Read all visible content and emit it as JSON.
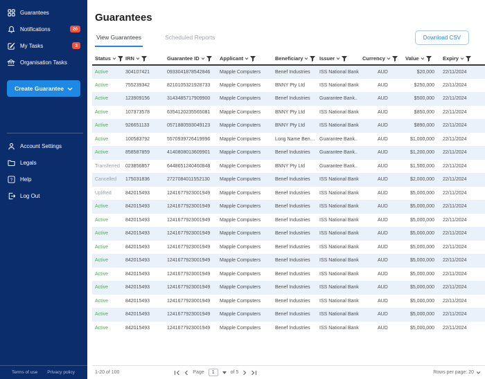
{
  "sidebar": {
    "items": [
      {
        "label": "Guarantees",
        "icon": "grid-icon",
        "badge": null
      },
      {
        "label": "Notifications",
        "icon": "bell-icon",
        "badge": "20"
      },
      {
        "label": "My Tasks",
        "icon": "tasks-icon",
        "badge": "3"
      },
      {
        "label": "Organisation Tasks",
        "icon": "bank-icon",
        "badge": null
      }
    ],
    "create_button_label": "Create Guarantee",
    "secondary_items": [
      {
        "label": "Account Settings",
        "icon": "person-icon"
      },
      {
        "label": "Legals",
        "icon": "folder-icon"
      },
      {
        "label": "Help",
        "icon": "help-icon"
      },
      {
        "label": "Log Out",
        "icon": "logout-icon"
      }
    ],
    "footer_links": {
      "terms": "Terms of use",
      "privacy": "Privacy policy"
    }
  },
  "header": {
    "title": "Guarantees",
    "tabs": [
      {
        "label": "View Guarantees",
        "active": true
      },
      {
        "label": "Scheduled Reports",
        "active": false
      }
    ],
    "download_button_label": "Download CSV"
  },
  "table": {
    "columns": [
      "Status",
      "IRN",
      "Guarantee ID",
      "Applicant",
      "Beneficiary",
      "Issuer",
      "Currency",
      "Value",
      "Expiry"
    ],
    "rows": [
      [
        "Active",
        "304107421",
        "0933041878542846",
        "Mapple Computers",
        "Benef Industries",
        "ISS National Bank",
        "AUD",
        "$20,000",
        "22/11/2024"
      ],
      [
        "Active",
        "755239342",
        "8210105321928733",
        "Mapple Computers",
        "BNNY Pty Ltd",
        "ISS National Bank",
        "AUD",
        "$250,000",
        "22/11/2024"
      ],
      [
        "Active",
        "123909156",
        "3143485717909900",
        "Mapple Computers",
        "Benef Industries",
        "Guarantee Bank..",
        "AUD",
        "$500,000",
        "22/11/2024"
      ],
      [
        "Active",
        "107373578",
        "6354120235565081",
        "Mapple Computers",
        "BNNY Pty Ltd",
        "ISS National Bank",
        "AUD",
        "$850,000",
        "22/11/2024"
      ],
      [
        "Active",
        "926651133",
        "0571880593049123",
        "Mapple Computers",
        "BNNY Pty Ltd",
        "ISS National Bank",
        "AUD",
        "$890,000",
        "22/11/2024"
      ],
      [
        "Active",
        "100583792",
        "5570939726419996",
        "Mapple Computers",
        "Long Name Benef...",
        "Guarantee Bank..",
        "AUD",
        "$1,000,000",
        "22/11/2024"
      ],
      [
        "Active",
        "858587859",
        "4140808013609901",
        "Mapple Computers",
        "Benef Industries",
        "Guarantee Bank..",
        "AUD",
        "$1,200,000",
        "22/11/2024"
      ],
      [
        "Transferred",
        "023856857",
        "6448651240460848",
        "Mapple Computers",
        "BNNY Pty Ltd",
        "Guarantee Bank..",
        "AUD",
        "$1,500,000",
        "22/11/2024"
      ],
      [
        "Cancelled",
        "175031836",
        "2727084011552130",
        "Mapple Computers",
        "Benef Industries",
        "ISS National Bank",
        "AUD",
        "$2,000,000",
        "22/11/2024"
      ],
      [
        "Uplifted",
        "842015493",
        "1241677923001949",
        "Mapple Computers",
        "Benef Industries",
        "ISS National Bank",
        "AUD",
        "$5,000,000",
        "22/11/2024"
      ],
      [
        "Active",
        "842015493",
        "1241677923001949",
        "Mapple Computers",
        "Benef Industries",
        "ISS National Bank",
        "AUD",
        "$5,000,000",
        "22/11/2024"
      ],
      [
        "Active",
        "842015493",
        "1241677923001949",
        "Mapple Computers",
        "Benef Industries",
        "ISS National Bank",
        "AUD",
        "$5,000,000",
        "22/11/2024"
      ],
      [
        "Active",
        "842015493",
        "1241677923001949",
        "Mapple Computers",
        "Benef Industries",
        "ISS National Bank",
        "AUD",
        "$5,000,000",
        "22/11/2024"
      ],
      [
        "Active",
        "842015493",
        "1241677923001949",
        "Mapple Computers",
        "Benef Industries",
        "ISS National Bank",
        "AUD",
        "$5,000,000",
        "22/11/2024"
      ],
      [
        "Active",
        "842015493",
        "1241677923001949",
        "Mapple Computers",
        "Benef Industries",
        "ISS National Bank",
        "AUD",
        "$5,000,000",
        "22/11/2024"
      ],
      [
        "Active",
        "842015493",
        "1241677923001949",
        "Mapple Computers",
        "Benef Industries",
        "ISS National Bank",
        "AUD",
        "$5,000,000",
        "22/11/2024"
      ],
      [
        "Active",
        "842015493",
        "1241677923001949",
        "Mapple Computers",
        "Benef Industries",
        "ISS National Bank",
        "AUD",
        "$5,000,000",
        "22/11/2024"
      ],
      [
        "Active",
        "842015493",
        "1241677923001949",
        "Mapple Computers",
        "Benef Industries",
        "ISS National Bank",
        "AUD",
        "$5,000,000",
        "22/11/2024"
      ],
      [
        "Active",
        "842015493",
        "1241677923001949",
        "Mapple Computers",
        "Benef Industries",
        "ISS National Bank",
        "AUD",
        "$5,000,000",
        "22/11/2024"
      ],
      [
        "Active",
        "842015493",
        "1241677923001949",
        "Mapple Computers",
        "Benef Industries",
        "ISS National Bank",
        "AUD",
        "$5,000,000",
        "22/11/2024"
      ]
    ]
  },
  "pagination": {
    "range_label": "1-20 of 100",
    "page_label": "Page",
    "current_page": "1",
    "of_label": "of 5",
    "rows_per_page_label": "Rows per page: 20"
  },
  "colors": {
    "sidebar_bg": "#0c2d6c",
    "accent_blue": "#1e88e5",
    "badge_red": "#f0513f",
    "status_active_green": "#4caf50",
    "status_muted_gray": "#9aa0a6",
    "row_stripe": "#e9f1fa"
  }
}
